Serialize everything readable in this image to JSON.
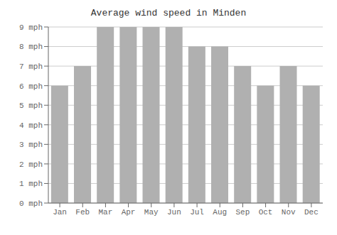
{
  "chart_data": {
    "type": "bar",
    "title": "Average wind speed in Minden",
    "categories": [
      "Jan",
      "Feb",
      "Mar",
      "Apr",
      "May",
      "Jun",
      "Jul",
      "Aug",
      "Sep",
      "Oct",
      "Nov",
      "Dec"
    ],
    "values": [
      6,
      7,
      9,
      9,
      9,
      9,
      8,
      8,
      7,
      6,
      7,
      6
    ],
    "color": "#b0b0b0",
    "ylim": [
      0,
      9
    ],
    "yticks": [
      {
        "value": 0,
        "label": "0 mph"
      },
      {
        "value": 1,
        "label": "1 mph"
      },
      {
        "value": 2,
        "label": "2 mph"
      },
      {
        "value": 3,
        "label": "3 mph"
      },
      {
        "value": 4,
        "label": "4 mph"
      },
      {
        "value": 5,
        "label": "5 mph"
      },
      {
        "value": 6,
        "label": "6 mph"
      },
      {
        "value": 7,
        "label": "7 mph"
      },
      {
        "value": 8,
        "label": "8 mph"
      },
      {
        "value": 9,
        "label": "9 mph"
      }
    ],
    "grid": true
  }
}
